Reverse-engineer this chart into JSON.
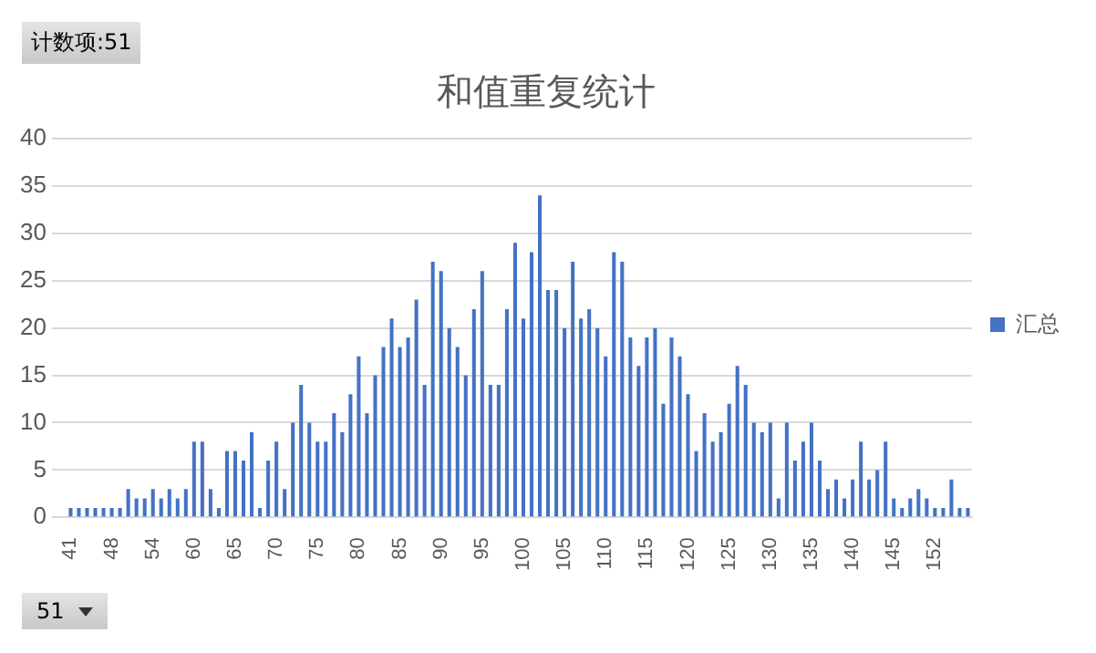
{
  "chart_data": {
    "type": "bar",
    "title": "和值重复统计",
    "categories": [
      "41",
      null,
      null,
      null,
      null,
      "48",
      null,
      null,
      null,
      null,
      "54",
      null,
      null,
      null,
      null,
      "60",
      null,
      null,
      null,
      null,
      "65",
      null,
      null,
      null,
      null,
      "70",
      null,
      null,
      null,
      null,
      "75",
      null,
      null,
      null,
      null,
      "80",
      null,
      null,
      null,
      null,
      "85",
      null,
      null,
      null,
      null,
      "90",
      null,
      null,
      null,
      null,
      "95",
      null,
      null,
      null,
      null,
      "100",
      null,
      null,
      null,
      null,
      "105",
      null,
      null,
      null,
      null,
      "110",
      null,
      null,
      null,
      null,
      "115",
      null,
      null,
      null,
      null,
      "120",
      null,
      null,
      null,
      null,
      "125",
      null,
      null,
      null,
      null,
      "130",
      null,
      null,
      null,
      null,
      "135",
      null,
      null,
      null,
      null,
      "140",
      null,
      null,
      null,
      null,
      "145",
      null,
      null,
      null,
      null,
      "152",
      null,
      null,
      null,
      null
    ],
    "series": [
      {
        "name": "汇总",
        "color": "#4472c4",
        "values": [
          1,
          1,
          1,
          1,
          1,
          1,
          1,
          3,
          2,
          2,
          3,
          2,
          3,
          2,
          3,
          8,
          8,
          3,
          1,
          7,
          7,
          6,
          9,
          1,
          6,
          8,
          3,
          10,
          14,
          10,
          8,
          8,
          11,
          9,
          13,
          17,
          11,
          15,
          18,
          21,
          18,
          19,
          23,
          14,
          27,
          26,
          20,
          18,
          15,
          22,
          26,
          14,
          14,
          22,
          29,
          21,
          28,
          34,
          24,
          24,
          20,
          27,
          21,
          22,
          20,
          17,
          28,
          27,
          19,
          16,
          19,
          20,
          12,
          19,
          17,
          13,
          7,
          11,
          8,
          9,
          12,
          16,
          14,
          10,
          9,
          10,
          2,
          10,
          6,
          8,
          10,
          6,
          3,
          4,
          2,
          4,
          8,
          4,
          5,
          8,
          2,
          1,
          2,
          3,
          2,
          1,
          1,
          4,
          1,
          1
        ]
      }
    ],
    "ylim": [
      0,
      40
    ],
    "yticks": [
      0,
      5,
      10,
      15,
      20,
      25,
      30,
      35,
      40
    ],
    "grid": "y",
    "legend": "right",
    "annotations": [
      "计数项:51",
      "51"
    ]
  }
}
